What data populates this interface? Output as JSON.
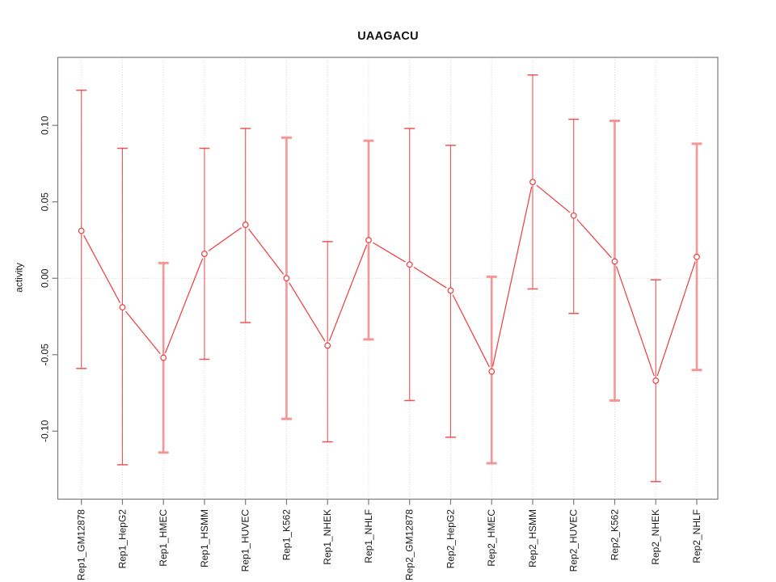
{
  "chart_data": {
    "type": "line",
    "title": "UAAGACU",
    "xlabel": "",
    "ylabel": "activity",
    "categories": [
      "Rep1_GM12878",
      "Rep1_HepG2",
      "Rep1_HMEC",
      "Rep1_HSMM",
      "Rep1_HUVEC",
      "Rep1_K562",
      "Rep1_NHEK",
      "Rep1_NHLF",
      "Rep2_GM12878",
      "Rep2_HepG2",
      "Rep2_HMEC",
      "Rep2_HSMM",
      "Rep2_HUVEC",
      "Rep2_K562",
      "Rep2_NHEK",
      "Rep2_NHLF"
    ],
    "series": [
      {
        "name": "activity",
        "values": [
          0.031,
          -0.019,
          -0.052,
          0.016,
          0.035,
          0.0,
          -0.044,
          0.025,
          0.009,
          -0.008,
          -0.061,
          0.063,
          0.041,
          0.011,
          -0.067,
          0.014
        ],
        "error_low": [
          -0.059,
          -0.122,
          -0.114,
          -0.053,
          -0.029,
          -0.092,
          -0.107,
          -0.04,
          -0.08,
          -0.104,
          -0.121,
          -0.007,
          -0.023,
          -0.08,
          -0.133,
          -0.06
        ],
        "error_high": [
          0.123,
          0.085,
          0.01,
          0.085,
          0.098,
          0.092,
          0.024,
          0.09,
          0.098,
          0.087,
          0.001,
          0.133,
          0.104,
          0.103,
          -0.001,
          0.088
        ]
      }
    ],
    "thick_bar_indices": [
      2,
      5,
      7,
      10,
      13,
      15
    ],
    "yticks": [
      0.1,
      0.05,
      0.0,
      -0.05,
      -0.1
    ],
    "ytick_labels": [
      "0.10",
      "0.05",
      "0.00",
      "-0.05",
      "-0.10"
    ],
    "ylim": [
      -0.1445,
      0.1445
    ],
    "point_marker": "open-circle",
    "legend": "none",
    "grid": {
      "vertical_dotted_per_category": true,
      "horizontal_dotted_zero_line": true
    },
    "colors": {
      "series": "#ef3b3b",
      "error_bar": "#ee4c4c",
      "error_bar_light": "#f89090",
      "grid": "#d8d8d8",
      "axis": "#7a7a7a",
      "text": "#1a1a1a",
      "background": "#ffffff"
    }
  }
}
